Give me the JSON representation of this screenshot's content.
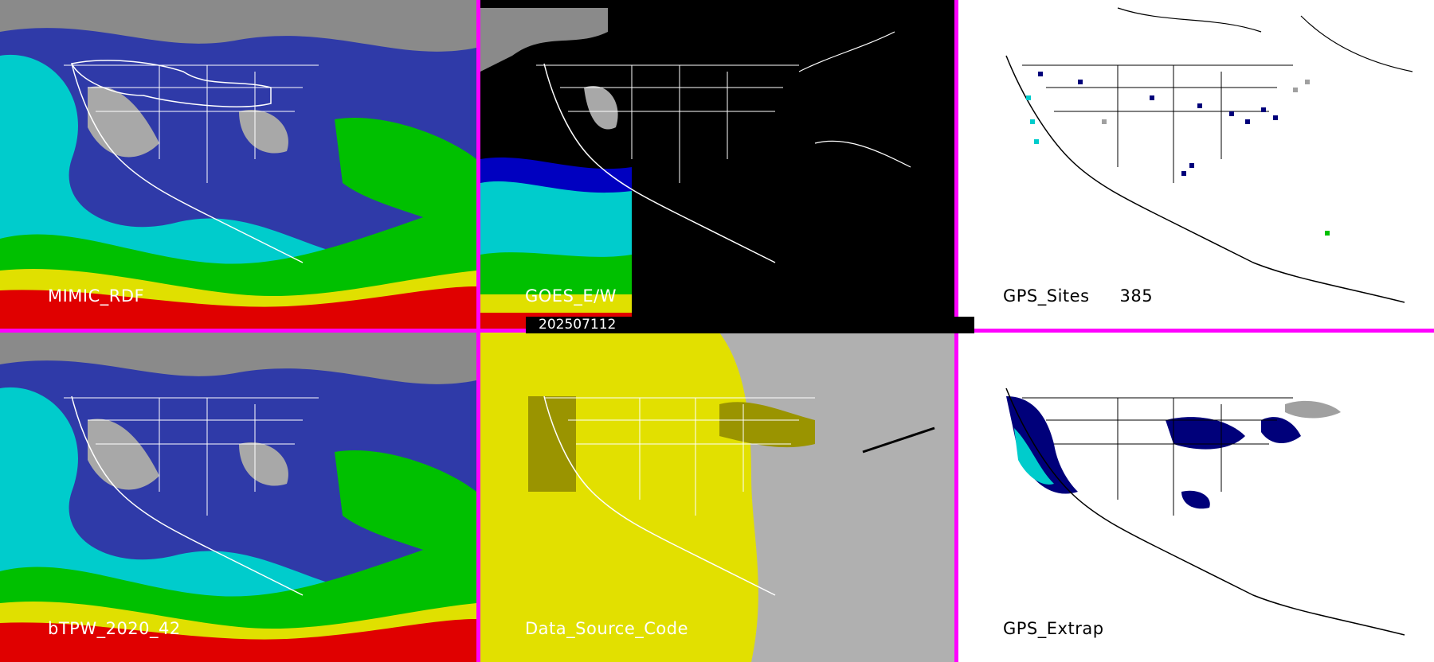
{
  "panels": [
    {
      "id": "mimic",
      "label": "MIMIC_RDF",
      "theme": "tpw"
    },
    {
      "id": "goes",
      "label": "GOES_E/W",
      "theme": "goes"
    },
    {
      "id": "gps-sites",
      "label": "GPS_Sites",
      "count": "385",
      "theme": "gps"
    },
    {
      "id": "btpw",
      "label": "bTPW_2020_42",
      "theme": "tpw"
    },
    {
      "id": "source",
      "label": "Data_Source_Code",
      "theme": "source"
    },
    {
      "id": "gps-extrap",
      "label": "GPS_Extrap",
      "theme": "gpsx"
    }
  ],
  "timestamp": "202507112",
  "colors": {
    "border": "#ff00ff",
    "land_outline": "#ffffff",
    "gray": "#b0b0b0",
    "navy": "#000080",
    "blue": "#0000c8",
    "cyan": "#00e0e0",
    "green": "#00c800",
    "yellow": "#e6e000",
    "red": "#e60000",
    "source_yellow": "#e2e000",
    "source_olive": "#9a9400"
  }
}
